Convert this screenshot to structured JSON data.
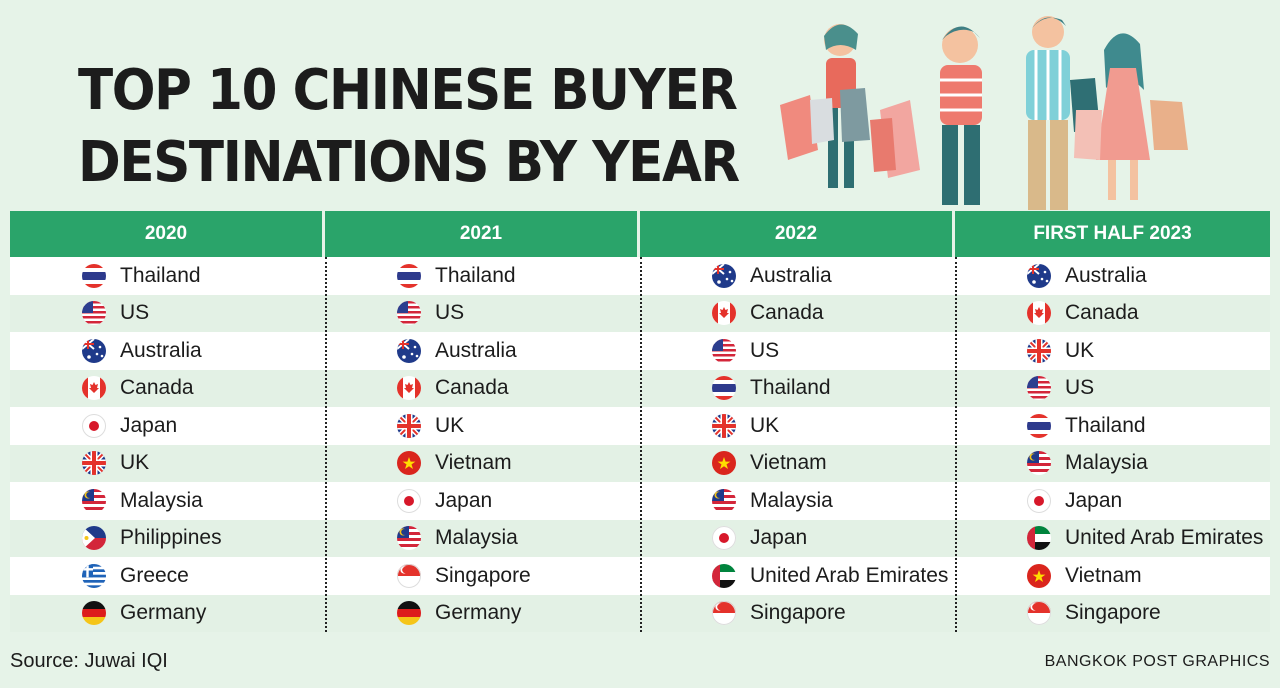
{
  "title": {
    "line1": "TOP 10 CHINESE BUYER",
    "line2": "DESTINATIONS BY YEAR"
  },
  "columns": [
    {
      "label": "2020",
      "rows": [
        {
          "country": "Thailand",
          "flag": "thailand-flag-icon"
        },
        {
          "country": "US",
          "flag": "us-flag-icon"
        },
        {
          "country": "Australia",
          "flag": "australia-flag-icon"
        },
        {
          "country": "Canada",
          "flag": "canada-flag-icon"
        },
        {
          "country": "Japan",
          "flag": "japan-flag-icon"
        },
        {
          "country": "UK",
          "flag": "uk-flag-icon"
        },
        {
          "country": "Malaysia",
          "flag": "malaysia-flag-icon"
        },
        {
          "country": "Philippines",
          "flag": "philippines-flag-icon"
        },
        {
          "country": "Greece",
          "flag": "greece-flag-icon"
        },
        {
          "country": "Germany",
          "flag": "germany-flag-icon"
        }
      ]
    },
    {
      "label": "2021",
      "rows": [
        {
          "country": "Thailand",
          "flag": "thailand-flag-icon"
        },
        {
          "country": "US",
          "flag": "us-flag-icon"
        },
        {
          "country": "Australia",
          "flag": "australia-flag-icon"
        },
        {
          "country": "Canada",
          "flag": "canada-flag-icon"
        },
        {
          "country": "UK",
          "flag": "uk-flag-icon"
        },
        {
          "country": "Vietnam",
          "flag": "vietnam-flag-icon"
        },
        {
          "country": "Japan",
          "flag": "japan-flag-icon"
        },
        {
          "country": "Malaysia",
          "flag": "malaysia-flag-icon"
        },
        {
          "country": "Singapore",
          "flag": "singapore-flag-icon"
        },
        {
          "country": "Germany",
          "flag": "germany-flag-icon"
        }
      ]
    },
    {
      "label": "2022",
      "rows": [
        {
          "country": "Australia",
          "flag": "australia-flag-icon"
        },
        {
          "country": "Canada",
          "flag": "canada-flag-icon"
        },
        {
          "country": "US",
          "flag": "us-flag-icon"
        },
        {
          "country": "Thailand",
          "flag": "thailand-flag-icon"
        },
        {
          "country": "UK",
          "flag": "uk-flag-icon"
        },
        {
          "country": "Vietnam",
          "flag": "vietnam-flag-icon"
        },
        {
          "country": "Malaysia",
          "flag": "malaysia-flag-icon"
        },
        {
          "country": "Japan",
          "flag": "japan-flag-icon"
        },
        {
          "country": "United Arab Emirates",
          "flag": "uae-flag-icon"
        },
        {
          "country": "Singapore",
          "flag": "singapore-flag-icon"
        }
      ]
    },
    {
      "label": "FIRST HALF 2023",
      "rows": [
        {
          "country": "Australia",
          "flag": "australia-flag-icon"
        },
        {
          "country": "Canada",
          "flag": "canada-flag-icon"
        },
        {
          "country": "UK",
          "flag": "uk-flag-icon"
        },
        {
          "country": "US",
          "flag": "us-flag-icon"
        },
        {
          "country": "Thailand",
          "flag": "thailand-flag-icon"
        },
        {
          "country": "Malaysia",
          "flag": "malaysia-flag-icon"
        },
        {
          "country": "Japan",
          "flag": "japan-flag-icon"
        },
        {
          "country": "United Arab Emirates",
          "flag": "uae-flag-icon"
        },
        {
          "country": "Vietnam",
          "flag": "vietnam-flag-icon"
        },
        {
          "country": "Singapore",
          "flag": "singapore-flag-icon"
        }
      ]
    }
  ],
  "source": "Source: Juwai IQI",
  "credit": "BANGKOK POST GRAPHICS",
  "colors": {
    "header_green": "#2aa46a",
    "background": "#e6f3e8",
    "row_alt": "#e3f1e5"
  },
  "illustration": "shoppers-illustration"
}
